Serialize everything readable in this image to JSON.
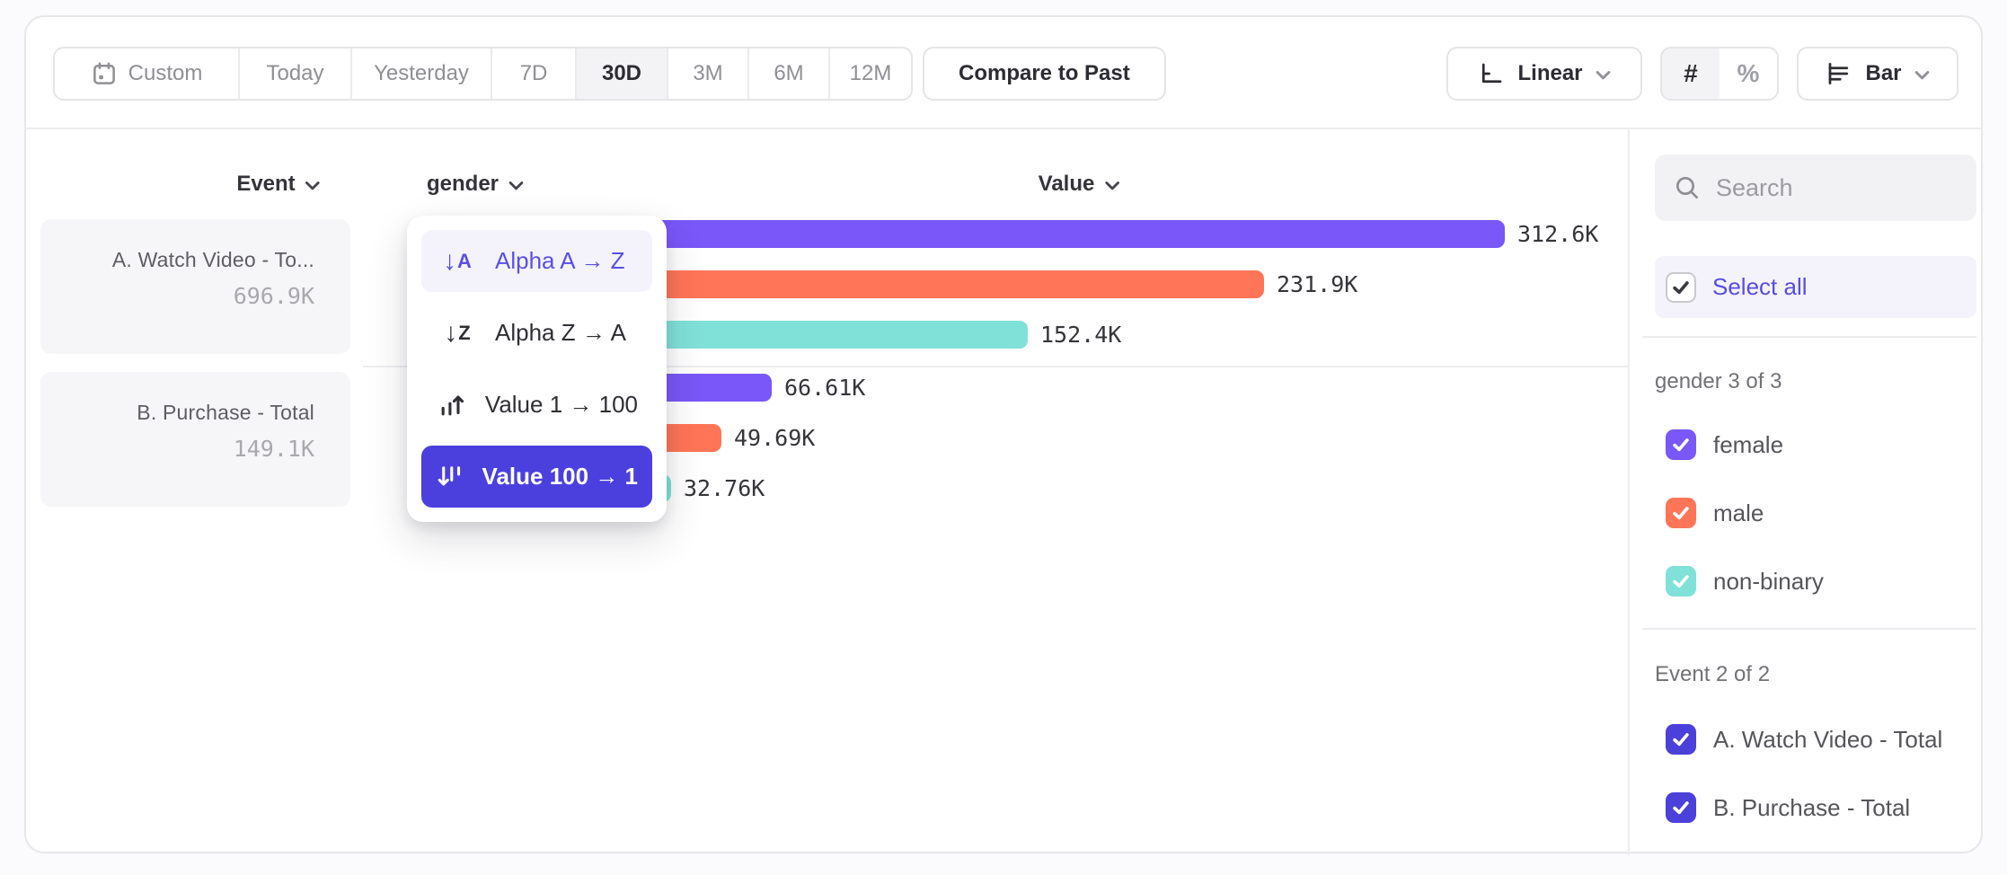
{
  "toolbar": {
    "date_ranges": [
      {
        "label": "Custom",
        "icon": "calendar-icon"
      },
      {
        "label": "Today"
      },
      {
        "label": "Yesterday"
      },
      {
        "label": "7D"
      },
      {
        "label": "30D"
      },
      {
        "label": "3M"
      },
      {
        "label": "6M"
      },
      {
        "label": "12M"
      }
    ],
    "selected_range": "30D",
    "compare_label": "Compare to Past",
    "scale_label": "Linear",
    "scale_icon": "linear-axis-icon",
    "format_number": "#",
    "format_percent": "%",
    "selected_format": "#",
    "chart_type_label": "Bar",
    "chart_type_icon": "bar-chart-icon"
  },
  "columns": {
    "event": "Event",
    "breakdown": "gender",
    "value": "Value"
  },
  "event_totals": [
    {
      "name": "A. Watch Video - To...",
      "value": "696.9K"
    },
    {
      "name": "B. Purchase - Total",
      "value": "149.1K"
    }
  ],
  "sort_menu": {
    "items": [
      {
        "label": "Alpha A → Z",
        "icon": "sort-alpha-asc-icon",
        "state": "highlighted"
      },
      {
        "label": "Alpha Z → A",
        "icon": "sort-alpha-desc-icon",
        "state": "normal"
      },
      {
        "label": "Value 1 → 100",
        "icon": "sort-value-asc-icon",
        "state": "normal"
      },
      {
        "label": "Value 100 → 1",
        "icon": "sort-value-desc-icon",
        "state": "selected"
      }
    ]
  },
  "chart_data": {
    "type": "bar",
    "orientation": "horizontal",
    "value_axis_label": "Value",
    "breakdown_property": "gender",
    "sorted_by": "Value 100 → 1",
    "max_value": 312600,
    "groups": [
      {
        "event": "A. Watch Video - Total",
        "bars": [
          {
            "category": "female",
            "value": 312600,
            "label": "312.6K",
            "color": "#7957f8"
          },
          {
            "category": "male",
            "value": 231900,
            "label": "231.9K",
            "color": "#ff7557"
          },
          {
            "category": "non-binary",
            "value": 152400,
            "label": "152.4K",
            "color": "#80e1d9"
          }
        ]
      },
      {
        "event": "B. Purchase - Total",
        "bars": [
          {
            "category": "female",
            "value": 66610,
            "label": "66.61K",
            "color": "#7957f8"
          },
          {
            "category": "male",
            "value": 49690,
            "label": "49.69K",
            "color": "#ff7557"
          },
          {
            "category": "non-binary",
            "value": 32760,
            "label": "32.76K",
            "color": "#80e1d9"
          }
        ]
      }
    ]
  },
  "sidebar": {
    "search_placeholder": "Search",
    "select_all_label": "Select all",
    "select_all_checked": true,
    "groups": [
      {
        "title": "gender 3 of 3",
        "items": [
          {
            "label": "female",
            "checked": true,
            "color": "#7957f8"
          },
          {
            "label": "male",
            "checked": true,
            "color": "#ff7557"
          },
          {
            "label": "non-binary",
            "checked": true,
            "color": "#80e1d9"
          }
        ]
      },
      {
        "title": "Event 2 of 2",
        "items": [
          {
            "label": "A. Watch Video - Total",
            "checked": true,
            "color": "#4b40da"
          },
          {
            "label": "B. Purchase - Total",
            "checked": true,
            "color": "#4b40da"
          }
        ]
      }
    ]
  },
  "colors": {
    "accent": "#4b40dd",
    "accent_text": "#5a4fe8",
    "series_purple": "#7957f8",
    "series_orange": "#ff7557",
    "series_teal": "#80e1d9"
  }
}
